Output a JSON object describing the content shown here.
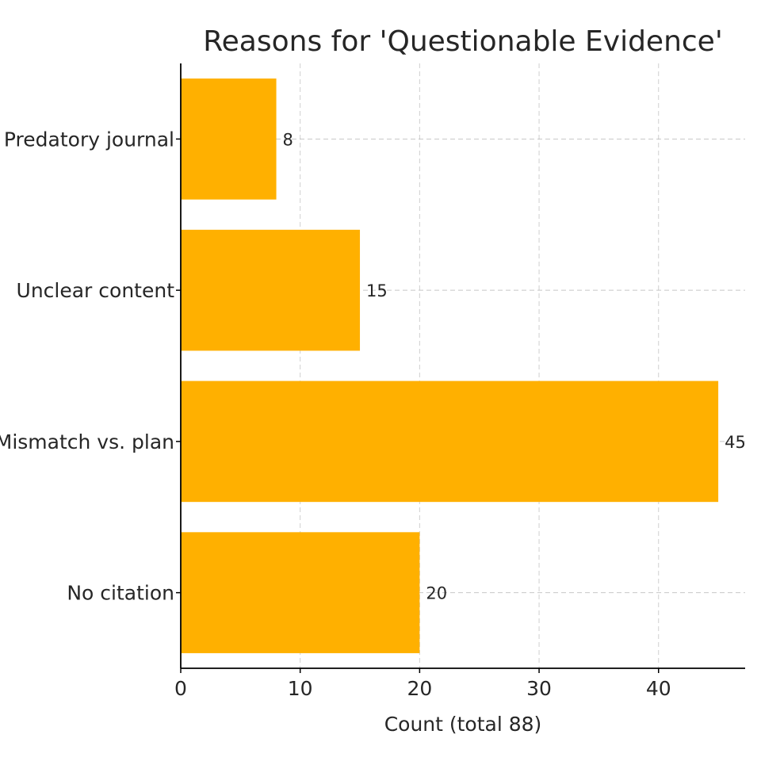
{
  "chart_data": {
    "type": "bar",
    "orientation": "horizontal",
    "title": "Reasons for 'Questionable Evidence'",
    "xlabel": "Count (total 88)",
    "ylabel": "",
    "categories": [
      "Predatory journal",
      "Unclear content",
      "Mismatch vs. plan",
      "No citation"
    ],
    "values": [
      8,
      15,
      45,
      20
    ],
    "data_labels": [
      "8",
      "15",
      "45",
      "20"
    ],
    "xlim": [
      0,
      47.25
    ],
    "xticks": [
      0,
      10,
      20,
      30,
      40
    ],
    "xtick_labels": [
      "0",
      "10",
      "20",
      "30",
      "40"
    ],
    "grid": true,
    "bar_color": "#FFB000",
    "grid_color": "#b0b0b0",
    "axis_color": "#000000"
  }
}
